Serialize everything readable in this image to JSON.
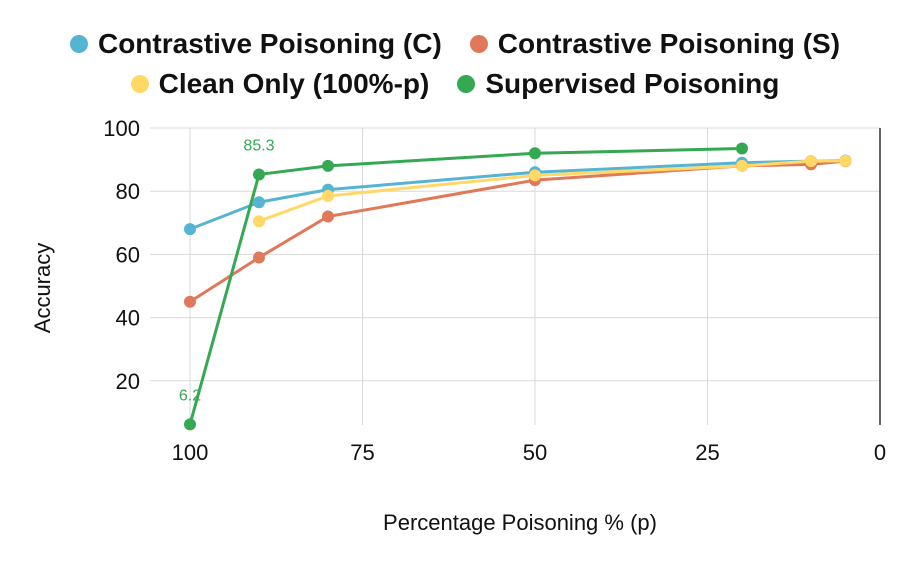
{
  "chart_data": {
    "type": "line",
    "title": "",
    "xlabel": "Percentage Poisoning % (p)",
    "ylabel": "Accuracy",
    "xlim": [
      100,
      0
    ],
    "ylim": [
      6,
      100
    ],
    "x_ticks": [
      "100",
      "75",
      "50",
      "25",
      "0"
    ],
    "y_ticks": [
      "100",
      "80",
      "60",
      "40",
      "20"
    ],
    "legend_position": "top",
    "series": [
      {
        "name": "Contrastive Poisoning (C)",
        "color": "#56B4D3",
        "points": [
          [
            100,
            68
          ],
          [
            90,
            76.5
          ],
          [
            80,
            80.5
          ],
          [
            50,
            86
          ],
          [
            20,
            89
          ],
          [
            10,
            89.5
          ],
          [
            5,
            89.7
          ]
        ]
      },
      {
        "name": "Contrastive Poisoning (S)",
        "color": "#E0785A",
        "points": [
          [
            100,
            45
          ],
          [
            90,
            59
          ],
          [
            80,
            72
          ],
          [
            50,
            83.5
          ],
          [
            20,
            88
          ],
          [
            10,
            88.5
          ],
          [
            5,
            89.5
          ]
        ]
      },
      {
        "name": "Clean Only (100%-p)",
        "color": "#FFD866",
        "points": [
          [
            90,
            70.5
          ],
          [
            80,
            78.5
          ],
          [
            50,
            85
          ],
          [
            20,
            88
          ],
          [
            10,
            89.5
          ],
          [
            5,
            89.6
          ]
        ]
      },
      {
        "name": "Supervised Poisoning",
        "color": "#34A853",
        "points": [
          [
            100,
            6.2
          ],
          [
            90,
            85.3
          ],
          [
            80,
            88
          ],
          [
            50,
            92
          ],
          [
            20,
            93.5
          ]
        ]
      }
    ],
    "annotations": [
      {
        "series": "Supervised Poisoning",
        "x": 100,
        "y": 6.2,
        "text": "6.2"
      },
      {
        "series": "Supervised Poisoning",
        "x": 90,
        "y": 85.3,
        "text": "85.3"
      }
    ]
  }
}
